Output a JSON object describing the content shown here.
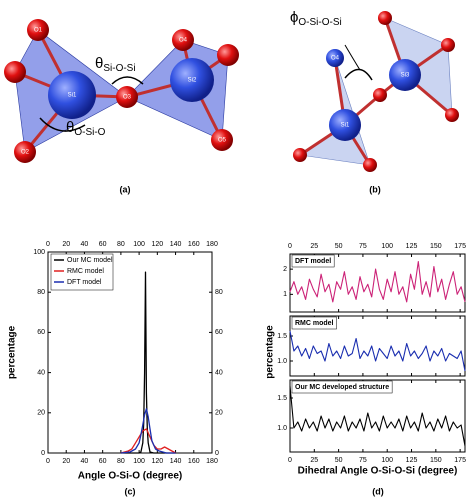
{
  "diagrams": {
    "a": {
      "label": "(a)",
      "theta1": {
        "symbol": "θ",
        "subscript": "Si-O-Si"
      },
      "theta2": {
        "symbol": "θ",
        "subscript": "O-Si-O"
      },
      "atoms": [
        "O1",
        "O2",
        "O3",
        "O4",
        "O5",
        "Si1",
        "Si2"
      ]
    },
    "b": {
      "label": "(b)",
      "phi": {
        "symbol": "ϕ",
        "subscript": "O-Si-O-Si"
      },
      "atoms": [
        "O4",
        "Si1",
        "Si3"
      ]
    }
  },
  "panel_labels": {
    "c": "(c)",
    "d": "(d)"
  },
  "chart_data": [
    {
      "type": "line",
      "xlabel": "Angle O-Si-O (degree)",
      "ylabel": "percentage",
      "xlim": [
        0,
        180
      ],
      "xticks": [
        0,
        20,
        40,
        60,
        80,
        100,
        120,
        140,
        160,
        180
      ],
      "ylim": [
        0,
        100
      ],
      "yticks": [
        0,
        20,
        40,
        60,
        80,
        100
      ],
      "y2lim": [
        0,
        100
      ],
      "y2ticks": [
        0,
        20,
        40,
        60,
        80
      ],
      "legend": "upper left",
      "series": [
        {
          "name": "Our MC model",
          "color": "#000000",
          "x": [
            80,
            96,
            100,
            102,
            104,
            105,
            106,
            107,
            108,
            109,
            110,
            112,
            116,
            140
          ],
          "values": [
            0,
            0,
            0,
            0.5,
            5,
            15,
            40,
            90,
            30,
            12,
            5,
            0.5,
            0,
            0
          ]
        },
        {
          "name": "RMC model",
          "color": "#e02020",
          "x": [
            80,
            88,
            92,
            96,
            100,
            104,
            108,
            112,
            116,
            120,
            124,
            128,
            132,
            136,
            140
          ],
          "values": [
            0,
            1,
            2,
            5,
            8,
            11,
            12,
            8,
            4,
            2,
            2,
            3,
            2,
            1,
            0
          ]
        },
        {
          "name": "DFT model",
          "color": "#1a2eb0",
          "x": [
            80,
            90,
            96,
            100,
            102,
            104,
            106,
            108,
            110,
            112,
            114,
            118,
            122,
            126,
            130,
            140
          ],
          "values": [
            0,
            0.5,
            2,
            5,
            9,
            14,
            19,
            22,
            18,
            12,
            6,
            2,
            1,
            0.5,
            0,
            0
          ]
        }
      ]
    },
    {
      "type": "line",
      "xlim": [
        0,
        180
      ],
      "xticks": [
        0,
        25,
        50,
        75,
        100,
        125,
        150,
        175
      ],
      "ylim": [
        0.3,
        2.6
      ],
      "yticks": [
        1,
        2
      ],
      "series": [
        {
          "name": "DFT model",
          "color": "#cc2277",
          "x": [
            0,
            4,
            8,
            12,
            16,
            20,
            24,
            28,
            32,
            36,
            40,
            44,
            48,
            52,
            56,
            60,
            64,
            68,
            72,
            76,
            80,
            84,
            88,
            92,
            96,
            100,
            104,
            108,
            112,
            116,
            120,
            124,
            128,
            132,
            136,
            140,
            144,
            148,
            152,
            156,
            160,
            164,
            168,
            172,
            176,
            180
          ],
          "values": [
            1.1,
            1.5,
            1.0,
            1.3,
            0.8,
            1.6,
            1.2,
            0.9,
            1.8,
            1.1,
            1.4,
            0.7,
            1.5,
            1.2,
            1.9,
            1.0,
            1.3,
            0.8,
            1.7,
            1.1,
            1.4,
            0.9,
            2.0,
            1.2,
            0.8,
            1.6,
            1.1,
            1.9,
            1.0,
            1.3,
            0.7,
            1.8,
            1.2,
            2.3,
            1.0,
            1.5,
            0.9,
            2.1,
            1.1,
            1.6,
            0.8,
            1.4,
            1.9,
            1.0,
            1.3,
            0.7
          ]
        }
      ]
    },
    {
      "type": "line",
      "xlim": [
        0,
        180
      ],
      "xticks": [
        0,
        25,
        50,
        75,
        100,
        125,
        150,
        175
      ],
      "ylim": [
        0.7,
        1.9
      ],
      "yticks": [
        {
          "value": 1,
          "label": "1.0"
        },
        {
          "value": 1.5,
          "label": "1.5"
        }
      ],
      "ylabel": "percentage",
      "series": [
        {
          "name": "RMC model",
          "color": "#1a2eb0",
          "x": [
            0,
            4,
            8,
            12,
            16,
            20,
            24,
            28,
            32,
            36,
            40,
            44,
            48,
            52,
            56,
            60,
            64,
            68,
            72,
            76,
            80,
            84,
            88,
            92,
            96,
            100,
            104,
            108,
            112,
            116,
            120,
            124,
            128,
            132,
            136,
            140,
            144,
            148,
            152,
            156,
            160,
            164,
            168,
            172,
            176,
            180
          ],
          "values": [
            1.6,
            1.2,
            1.3,
            1.1,
            1.25,
            1.05,
            1.3,
            1.15,
            1.2,
            1.0,
            1.35,
            1.1,
            1.2,
            1.05,
            1.3,
            1.1,
            1.15,
            1.45,
            1.05,
            1.2,
            1.1,
            1.3,
            1.0,
            1.25,
            1.15,
            1.05,
            1.3,
            1.1,
            1.2,
            1.0,
            1.35,
            1.1,
            1.2,
            1.05,
            1.15,
            1.3,
            1.0,
            1.2,
            1.1,
            1.25,
            1.0,
            1.15,
            1.1,
            1.05,
            1.2,
            0.8
          ]
        }
      ]
    },
    {
      "type": "line",
      "xlim": [
        0,
        180
      ],
      "xticks": [
        0,
        25,
        50,
        75,
        100,
        125,
        150,
        175
      ],
      "ylim": [
        0.6,
        1.8
      ],
      "yticks": [
        {
          "value": 1,
          "label": "1.0"
        },
        {
          "value": 1.5,
          "label": "1.5"
        }
      ],
      "xlabel": "Dihedral Angle O-Si-O-Si (degree)",
      "series": [
        {
          "name": "Our MC developed structure",
          "color": "#000000",
          "x": [
            0,
            4,
            8,
            12,
            16,
            20,
            24,
            28,
            32,
            36,
            40,
            44,
            48,
            52,
            56,
            60,
            64,
            68,
            72,
            76,
            80,
            84,
            88,
            92,
            96,
            100,
            104,
            108,
            112,
            116,
            120,
            124,
            128,
            132,
            136,
            140,
            144,
            148,
            152,
            156,
            160,
            164,
            168,
            172,
            176,
            180
          ],
          "values": [
            1.7,
            1.0,
            1.1,
            0.95,
            1.15,
            1.0,
            1.1,
            0.95,
            1.2,
            1.0,
            1.15,
            0.95,
            1.1,
            1.0,
            1.2,
            0.95,
            1.1,
            1.0,
            1.15,
            0.95,
            1.25,
            1.0,
            1.1,
            0.95,
            1.2,
            1.0,
            1.1,
            1.0,
            1.15,
            0.95,
            1.2,
            1.0,
            1.1,
            0.95,
            1.25,
            1.0,
            1.1,
            0.95,
            1.15,
            1.0,
            1.2,
            0.95,
            1.1,
            1.0,
            1.05,
            0.7
          ]
        }
      ]
    }
  ]
}
